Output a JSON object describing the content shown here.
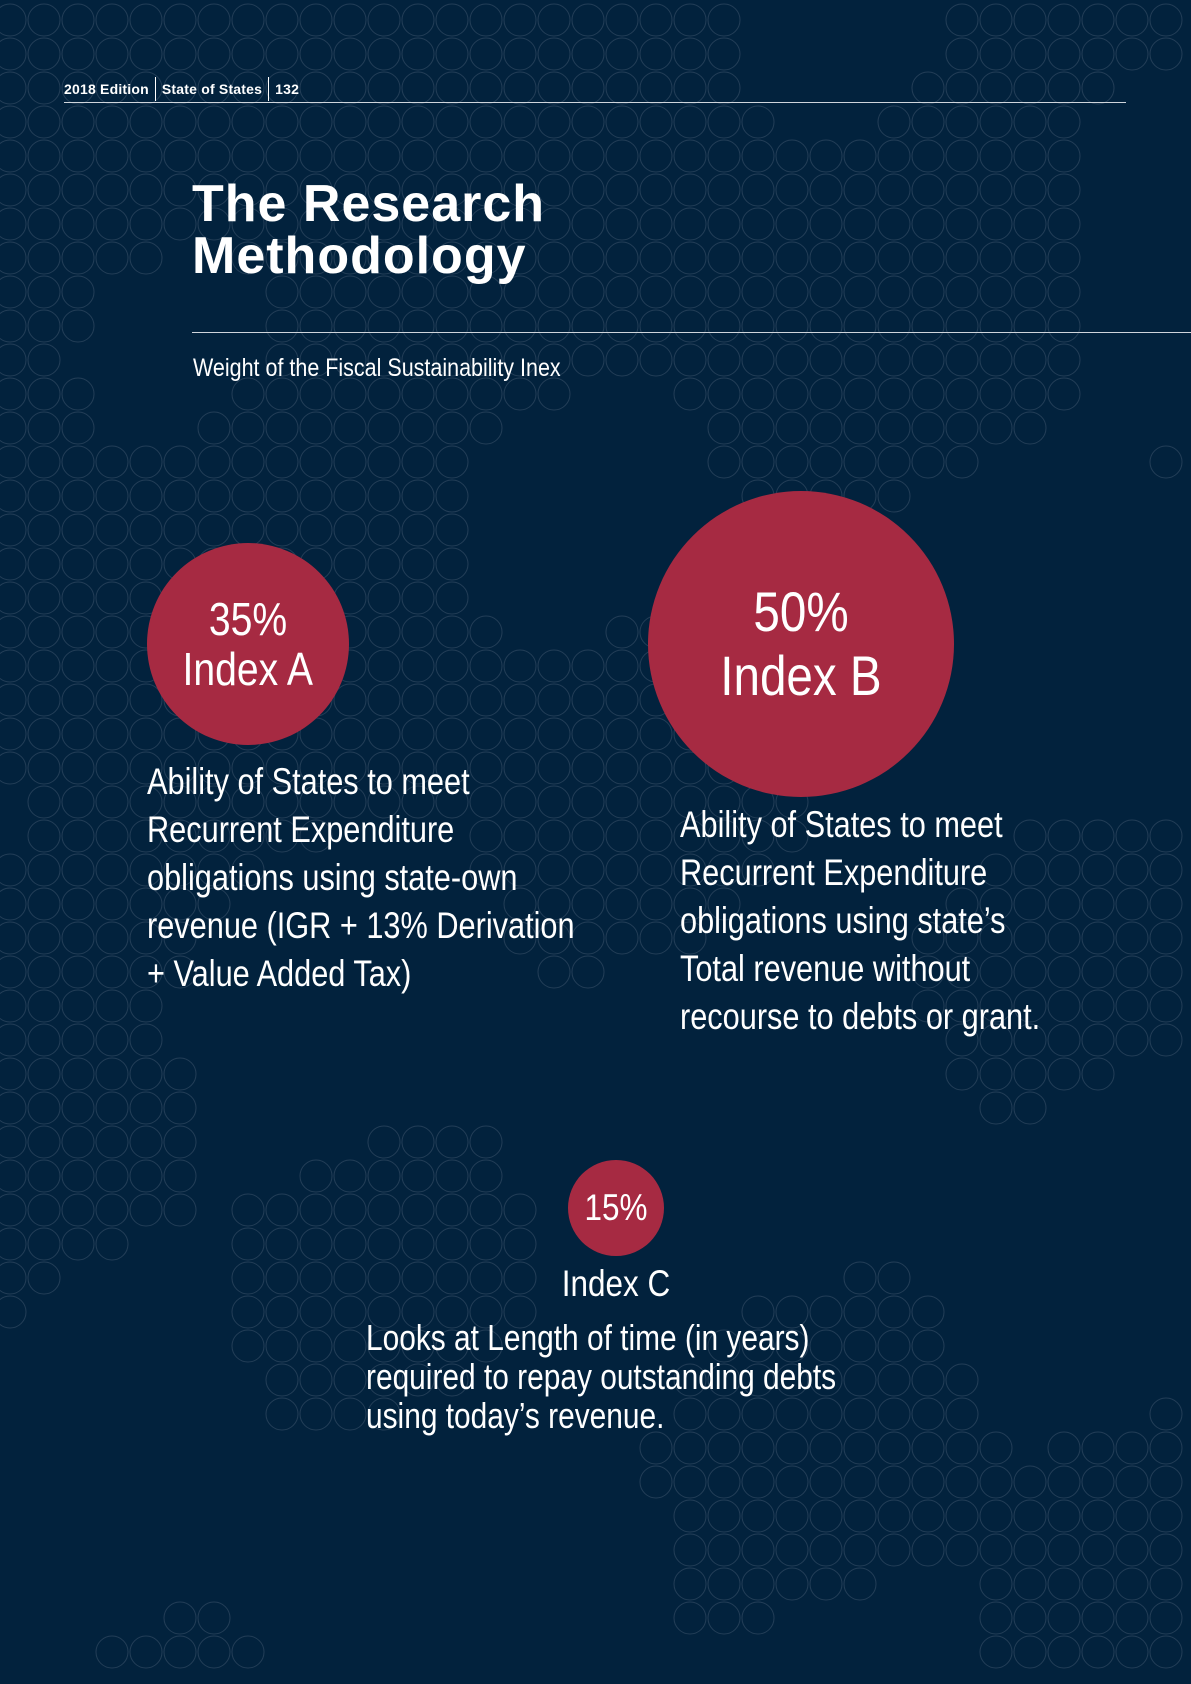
{
  "header": {
    "edition": "2018 Edition",
    "publication": "State of States",
    "page_number": "132"
  },
  "title": {
    "line1": "The Research",
    "line2": "Methodology"
  },
  "subtitle": "Weight of the Fiscal Sustainability Inex",
  "index_a": {
    "weight": "35%",
    "name": "Index A",
    "description": [
      "Ability of States to meet",
      "Recurrent Expenditure",
      "obligations using state-own",
      "revenue (IGR + 13% Derivation",
      "+ Value Added Tax)"
    ]
  },
  "index_b": {
    "weight": "50%",
    "name": "Index B",
    "description": [
      "Ability of States to meet",
      "Recurrent Expenditure",
      "obligations using state’s",
      "Total revenue without",
      "recourse to debts or grant."
    ]
  },
  "index_c": {
    "weight": "15%",
    "name": "Index C",
    "description": [
      "Looks at Length of time (in years)",
      "required to repay outstanding debts",
      "using today’s revenue."
    ]
  },
  "colors": {
    "background": "#02223d",
    "circle": "#a62a42",
    "pattern": "#3f566d"
  }
}
